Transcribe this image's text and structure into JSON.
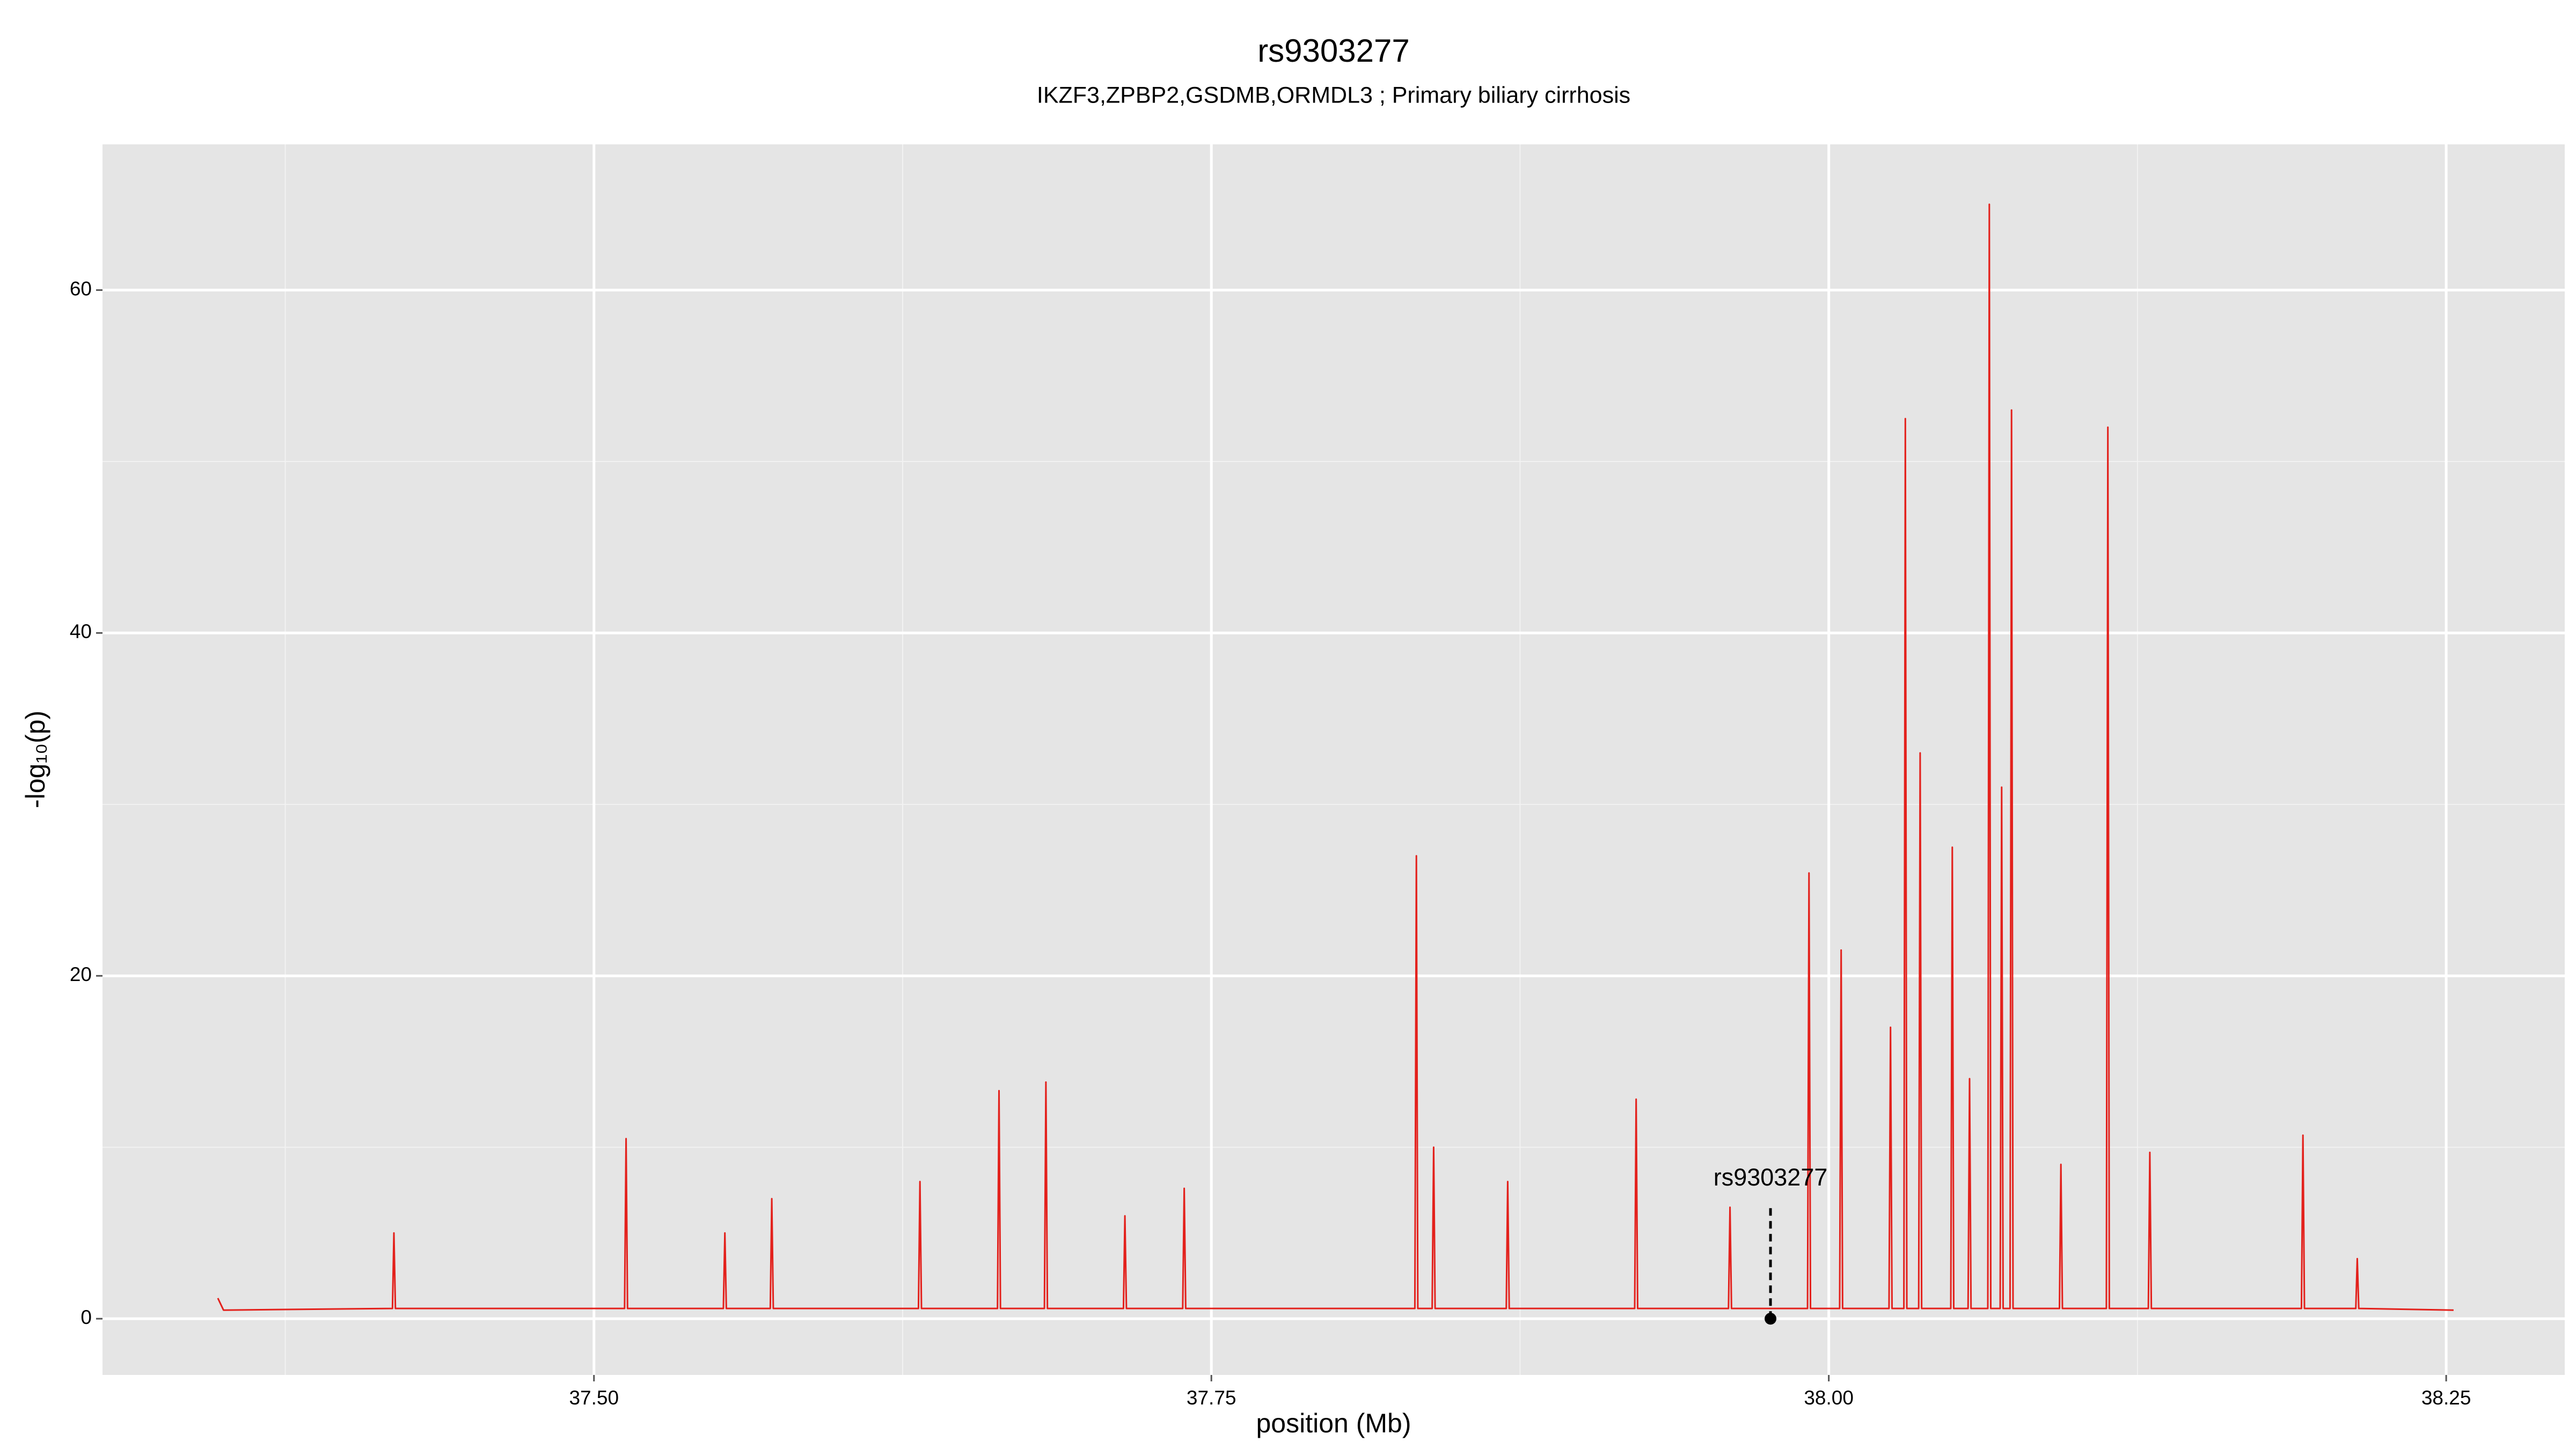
{
  "chart_data": {
    "type": "line",
    "title": "rs9303277",
    "subtitle": "IKZF3,ZPBP2,GSDMB,ORMDL3 ; Primary biliary cirrhosis",
    "x_label": "position (Mb)",
    "y_label": "-log₁₀(p)",
    "x": [
      37.3477,
      37.35,
      37.4184,
      37.419,
      37.4196,
      37.5124,
      37.513,
      37.5136,
      37.5524,
      37.553,
      37.5536,
      37.5714,
      37.572,
      37.5726,
      37.6314,
      37.632,
      37.6326,
      37.6634,
      37.664,
      37.6646,
      37.6824,
      37.683,
      37.6836,
      37.7144,
      37.715,
      37.7156,
      37.7384,
      37.739,
      37.7396,
      37.8324,
      37.833,
      37.8336,
      37.8394,
      37.84,
      37.8406,
      37.8694,
      37.87,
      37.8706,
      37.9214,
      37.922,
      37.9226,
      37.9594,
      37.96,
      37.9606,
      37.9914,
      37.992,
      37.9926,
      38.0044,
      38.005,
      38.0056,
      38.0244,
      38.025,
      38.0256,
      38.0304,
      38.031,
      38.0316,
      38.0364,
      38.037,
      38.0376,
      38.0494,
      38.05,
      38.0506,
      38.0564,
      38.057,
      38.0576,
      38.0644,
      38.065,
      38.0656,
      38.0694,
      38.07,
      38.0706,
      38.0734,
      38.074,
      38.0746,
      38.0934,
      38.094,
      38.0946,
      38.1124,
      38.113,
      38.1136,
      38.1294,
      38.13,
      38.1306,
      38.1914,
      38.192,
      38.1926,
      38.2134,
      38.214,
      38.2146,
      38.253
    ],
    "series": [
      {
        "name": "-log10(p)",
        "color": "#e3211c",
        "values": [
          1.2,
          0.5,
          0.6,
          5,
          0.6,
          0.6,
          10.5,
          0.6,
          0.6,
          5,
          0.6,
          0.6,
          7,
          0.6,
          0.6,
          8,
          0.6,
          0.6,
          13.3,
          0.6,
          0.6,
          13.8,
          0.6,
          0.6,
          6,
          0.6,
          0.6,
          7.6,
          0.6,
          0.6,
          27,
          0.6,
          0.6,
          10,
          0.6,
          0.6,
          8,
          0.6,
          0.6,
          12.8,
          0.6,
          0.6,
          6.5,
          0.6,
          0.6,
          26,
          0.6,
          0.6,
          21.5,
          0.6,
          0.6,
          17,
          0.6,
          0.6,
          52.5,
          0.6,
          0.6,
          33,
          0.6,
          0.6,
          27.5,
          0.6,
          0.6,
          14,
          0.6,
          0.6,
          65,
          0.6,
          0.6,
          31,
          0.6,
          0.6,
          53,
          0.6,
          0.6,
          9,
          0.6,
          0.6,
          52,
          0.6,
          0.6,
          9.7,
          0.6,
          0.6,
          10.7,
          0.6,
          0.6,
          3.5,
          0.6,
          0.5
        ]
      }
    ],
    "annotation": {
      "label": "rs9303277",
      "x": 37.9764,
      "y": 0
    },
    "xlim": [
      37.301,
      38.298
    ],
    "ylim": [
      -3.28,
      68.5
    ],
    "xticks": [
      {
        "value": 37.5,
        "label": "37.50"
      },
      37.75,
      {
        "value": 38,
        "label": "38.00"
      },
      38.25
    ],
    "yticks": [
      0,
      20,
      40,
      60
    ],
    "grid": true
  }
}
